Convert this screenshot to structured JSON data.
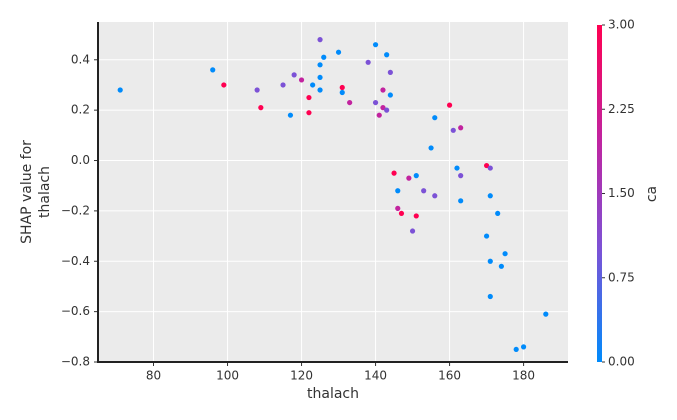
{
  "chart_data": {
    "type": "scatter",
    "xlabel": "thalach",
    "ylabel": [
      "SHAP value for",
      "thalach"
    ],
    "xlim": [
      65,
      192
    ],
    "ylim": [
      -0.8,
      0.55
    ],
    "xticks": [
      80,
      100,
      120,
      140,
      160,
      180
    ],
    "yticks": [
      {
        "value": -0.8,
        "label": "−0.8"
      },
      {
        "value": -0.6,
        "label": "−0.6"
      },
      {
        "value": -0.4,
        "label": "−0.4"
      },
      {
        "value": -0.2,
        "label": "−0.2"
      },
      {
        "value": 0,
        "label": "0.0"
      },
      0.2,
      0.4
    ],
    "grid": true,
    "colorbar": {
      "label": "ca",
      "lim": [
        0,
        3
      ],
      "colors": [
        "#008bfb",
        "#7c52d6",
        "#c2239f",
        "#ff0051"
      ],
      "ticks": [
        {
          "value": 0,
          "label": "0.00"
        },
        {
          "value": 0.75,
          "label": "0.75"
        },
        {
          "value": 1.5,
          "label": "1.50"
        },
        {
          "value": 2.25,
          "label": "2.25"
        },
        {
          "value": 3,
          "label": "3.00"
        }
      ]
    },
    "series": [
      {
        "x": [
          71,
          96,
          99,
          108,
          109,
          115,
          117,
          118,
          120,
          122,
          122,
          123,
          125,
          125,
          125,
          125,
          126,
          130,
          131,
          131,
          133,
          138,
          140,
          140,
          141,
          142,
          142,
          143,
          143,
          144,
          144,
          145,
          146,
          146,
          147,
          149,
          150,
          151,
          151,
          153,
          155,
          156,
          156,
          160,
          161,
          162,
          163,
          163,
          163,
          170,
          170,
          171,
          171,
          171,
          171,
          173,
          174,
          175,
          178,
          180,
          186
        ],
        "values": [
          0.28,
          0.36,
          0.3,
          0.28,
          0.21,
          0.3,
          0.18,
          0.34,
          0.32,
          0.25,
          0.19,
          0.3,
          0.48,
          0.38,
          0.33,
          0.28,
          0.41,
          0.43,
          0.29,
          0.27,
          0.23,
          0.39,
          0.46,
          0.23,
          0.18,
          0.28,
          0.21,
          0.42,
          0.2,
          0.35,
          0.26,
          -0.05,
          -0.12,
          -0.19,
          -0.21,
          -0.07,
          -0.28,
          -0.06,
          -0.22,
          -0.12,
          0.05,
          -0.14,
          0.17,
          0.22,
          0.12,
          -0.03,
          0.13,
          -0.16,
          -0.06,
          -0.3,
          -0.02,
          -0.03,
          -0.54,
          -0.14,
          -0.4,
          -0.21,
          -0.42,
          -0.37,
          -0.75,
          -0.74,
          -0.61
        ],
        "color_values": [
          0,
          0,
          3,
          1,
          3,
          1,
          0,
          1,
          2,
          3,
          3,
          0,
          1,
          0,
          0,
          0,
          0,
          0,
          3,
          0,
          2,
          1,
          0,
          1,
          2,
          2,
          2,
          0,
          1,
          1,
          0,
          3,
          0,
          2,
          3,
          2,
          1,
          0,
          3,
          1,
          0,
          1,
          0,
          3,
          1,
          0,
          2,
          0,
          1,
          0,
          3,
          1,
          0,
          0,
          0,
          0,
          0,
          0,
          0,
          0,
          0
        ]
      }
    ]
  }
}
